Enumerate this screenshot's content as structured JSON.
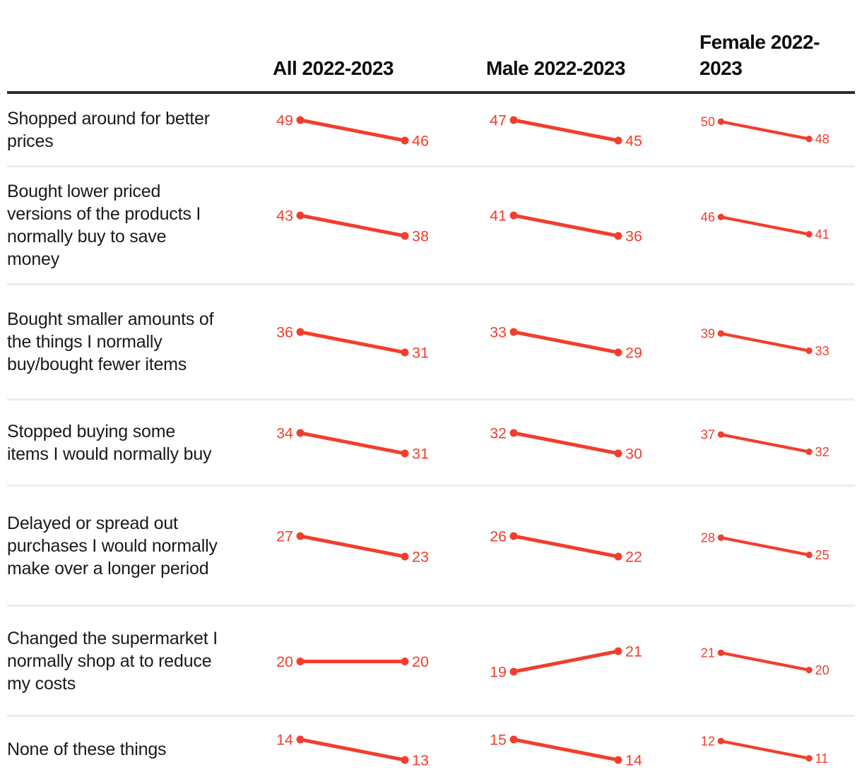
{
  "colors": {
    "accent": "#f23e2d",
    "header_rule": "#2d2d2d",
    "row_divider": "#ededed",
    "text": "#141414"
  },
  "chart_data": {
    "type": "line",
    "subtype": "slope-chart-table",
    "title": "",
    "x": [
      2022,
      2023
    ],
    "columns": [
      {
        "id": "all",
        "label": "All 2022-2023"
      },
      {
        "id": "male",
        "label": "Male 2022-2023"
      },
      {
        "id": "female",
        "label": "Female 2022-2023"
      }
    ],
    "rows": [
      {
        "label": "Shopped around for better prices",
        "values": {
          "all": [
            49,
            46
          ],
          "male": [
            47,
            45
          ],
          "female": [
            50,
            48
          ]
        }
      },
      {
        "label": "Bought lower priced versions of the products I normally buy to save money",
        "values": {
          "all": [
            43,
            38
          ],
          "male": [
            41,
            36
          ],
          "female": [
            46,
            41
          ]
        }
      },
      {
        "label": "Bought smaller amounts of the things I normally buy/bought fewer items",
        "values": {
          "all": [
            36,
            31
          ],
          "male": [
            33,
            29
          ],
          "female": [
            39,
            33
          ]
        }
      },
      {
        "label": "Stopped buying some items I would normally buy",
        "values": {
          "all": [
            34,
            31
          ],
          "male": [
            32,
            30
          ],
          "female": [
            37,
            32
          ]
        }
      },
      {
        "label": "Delayed or spread out purchases I would normally make over a longer period",
        "values": {
          "all": [
            27,
            23
          ],
          "male": [
            26,
            22
          ],
          "female": [
            28,
            25
          ]
        }
      },
      {
        "label": "Changed the supermarket I normally shop at to reduce my costs",
        "values": {
          "all": [
            20,
            20
          ],
          "male": [
            19,
            21
          ],
          "female": [
            21,
            20
          ]
        }
      },
      {
        "label": "None of these things",
        "values": {
          "all": [
            14,
            13
          ],
          "male": [
            15,
            14
          ],
          "female": [
            12,
            11
          ]
        }
      }
    ]
  }
}
